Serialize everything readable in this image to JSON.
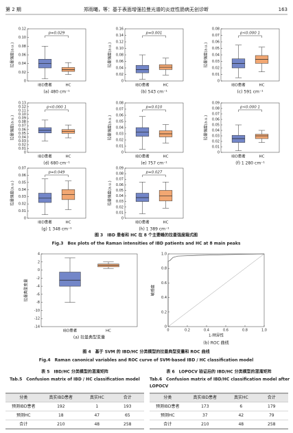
{
  "header": {
    "left": "第 2 期",
    "center": "郑雨曦，等：基于表面增强拉曼光谱的炎症性肠病无创诊断",
    "page": "163"
  },
  "figure3": {
    "caption_cn": "图 3　IBD 患者和 HC 在 8 个主要峰的拉曼强度箱式图",
    "caption_en": "Fig.3　Box plots of the Raman intensities of IBD patients and HC at 8 main peaks"
  },
  "figure4": {
    "caption_cn": "图 4　基于 SVM 的 IBD/HC 分类模型的拉曼典型变量和 ROC 曲线",
    "caption_en": "Fig.4　Raman canonical variables and ROC curve of SVM-based IBD / HC classification model"
  },
  "chart_data": [
    {
      "type": "box",
      "caption": "(a) 480 cm⁻¹",
      "ylabel": "拉曼强度(a.u.)",
      "annotation": "p=0.029",
      "categories": [
        "IBD患者",
        "HC"
      ],
      "colors": [
        "#7386c8",
        "#f2a772"
      ],
      "ylim": [
        0,
        0.12
      ],
      "yticks": [
        0,
        0.02,
        0.04,
        0.06,
        0.08,
        {
          "value": 0.1,
          "label": "0.10"
        },
        0.12
      ],
      "boxes": [
        {
          "whislo": 0.005,
          "q1": 0.03,
          "median": 0.04,
          "q3": 0.05,
          "whishi": 0.08
        },
        {
          "whislo": 0.015,
          "q1": 0.022,
          "median": 0.026,
          "q3": 0.031,
          "whishi": 0.042
        }
      ]
    },
    {
      "type": "box",
      "caption": "(b) 543 cm⁻¹",
      "ylabel": "拉曼强度(a.u.)",
      "annotation": "p=0.001",
      "categories": [
        "IBD患者",
        "HC"
      ],
      "colors": [
        "#7386c8",
        "#f2a772"
      ],
      "ylim": [
        0,
        0.16
      ],
      "yticks": [
        0,
        0.02,
        0.04,
        0.06,
        0.08,
        {
          "value": 0.1,
          "label": "0.10"
        },
        0.12,
        0.14,
        0.16
      ],
      "boxes": [
        {
          "whislo": 0.005,
          "q1": 0.025,
          "median": 0.035,
          "q3": 0.048,
          "whishi": 0.08
        },
        {
          "whislo": 0.018,
          "q1": 0.035,
          "median": 0.042,
          "q3": 0.05,
          "whishi": 0.07
        }
      ]
    },
    {
      "type": "box",
      "caption": "(c) 591 cm⁻¹",
      "ylabel": "拉曼强度(a.u.)",
      "annotation": "p<0.000 1",
      "categories": [
        "IBD患者",
        "HC"
      ],
      "colors": [
        "#7386c8",
        "#f2a772"
      ],
      "ylim": [
        0,
        0.08
      ],
      "yticks": [
        0,
        0.01,
        0.02,
        0.03,
        0.04,
        0.05,
        0.06,
        0.07,
        0.08
      ],
      "boxes": [
        {
          "whislo": 0.005,
          "q1": 0.02,
          "median": 0.027,
          "q3": 0.034,
          "whishi": 0.055
        },
        {
          "whislo": 0.014,
          "q1": 0.027,
          "median": 0.033,
          "q3": 0.039,
          "whishi": 0.052
        }
      ]
    },
    {
      "type": "box",
      "caption": "(d) 680 cm⁻¹",
      "ylabel": "拉曼强度(a.u.)",
      "annotation": "p<0.000 1",
      "categories": [
        "IBD患者",
        "HC"
      ],
      "colors": [
        "#7386c8",
        "#f2a772"
      ],
      "ylim": [
        0,
        0.13
      ],
      "yticks": [
        0,
        0.01,
        0.02,
        0.03,
        0.04,
        0.05,
        0.06,
        0.07,
        0.08,
        0.09,
        {
          "value": 0.1,
          "label": "0.10"
        },
        0.11,
        0.12,
        0.13
      ],
      "boxes": [
        {
          "whislo": 0.03,
          "q1": 0.051,
          "median": 0.058,
          "q3": 0.065,
          "whishi": 0.085
        },
        {
          "whislo": 0.038,
          "q1": 0.05,
          "median": 0.055,
          "q3": 0.06,
          "whishi": 0.072
        }
      ]
    },
    {
      "type": "box",
      "caption": "(e) 757 cm⁻¹",
      "ylabel": "拉曼强度(a.u.)",
      "annotation": "p=0.010",
      "categories": [
        "IBD患者",
        "HC"
      ],
      "colors": [
        "#7386c8",
        "#f2a772"
      ],
      "ylim": [
        0,
        0.08
      ],
      "yticks": [
        0,
        0.01,
        0.02,
        0.03,
        0.04,
        0.05,
        0.06,
        0.07,
        0.08
      ],
      "boxes": [
        {
          "whislo": 0.005,
          "q1": 0.026,
          "median": 0.033,
          "q3": 0.04,
          "whishi": 0.058
        },
        {
          "whislo": 0.015,
          "q1": 0.025,
          "median": 0.03,
          "q3": 0.035,
          "whishi": 0.045
        }
      ]
    },
    {
      "type": "box",
      "caption": "(f) 1 280 cm⁻¹",
      "ylabel": "拉曼强度(a.u.)",
      "annotation": "p<0.000 1",
      "categories": [
        "IBD患者",
        "HC"
      ],
      "colors": [
        "#7386c8",
        "#f2a772"
      ],
      "ylim": [
        0,
        0.09
      ],
      "yticks": [
        0,
        0.01,
        0.02,
        0.03,
        0.04,
        0.05,
        0.06,
        0.07,
        0.08,
        0.09
      ],
      "boxes": [
        {
          "whislo": 0.003,
          "q1": 0.018,
          "median": 0.025,
          "q3": 0.031,
          "whishi": 0.05
        },
        {
          "whislo": 0.018,
          "q1": 0.025,
          "median": 0.03,
          "q3": 0.033,
          "whishi": 0.04
        }
      ]
    },
    {
      "type": "box",
      "caption": "(g) 1 348 cm⁻¹",
      "ylabel": "拉曼强度(a.u.)",
      "annotation": "p=0.049",
      "categories": [
        "IBD患者",
        "HC"
      ],
      "colors": [
        "#7386c8",
        "#f2a772"
      ],
      "ylim": [
        0,
        0.07
      ],
      "yticks": [
        0,
        0.01,
        0.02,
        0.03,
        0.04,
        0.05,
        0.06,
        0.07
      ],
      "boxes": [
        {
          "whislo": 0.005,
          "q1": 0.022,
          "median": 0.028,
          "q3": 0.035,
          "whishi": 0.055
        },
        {
          "whislo": 0.012,
          "q1": 0.026,
          "median": 0.033,
          "q3": 0.04,
          "whishi": 0.052
        }
      ]
    },
    {
      "type": "box",
      "caption": "(h) 1 389 cm⁻¹",
      "ylabel": "拉曼强度(a.u.)",
      "annotation": "p=0.027",
      "categories": [
        "IBD患者",
        "HC"
      ],
      "colors": [
        "#7386c8",
        "#f2a772"
      ],
      "ylim": [
        0,
        0.09
      ],
      "yticks": [
        0,
        0.01,
        0.02,
        0.03,
        0.04,
        0.05,
        0.06,
        0.07,
        0.08,
        0.09
      ],
      "boxes": [
        {
          "whislo": 0.008,
          "q1": 0.03,
          "median": 0.037,
          "q3": 0.045,
          "whishi": 0.065
        },
        {
          "whislo": 0.018,
          "q1": 0.031,
          "median": 0.04,
          "q3": 0.05,
          "whishi": 0.065
        }
      ]
    },
    {
      "type": "box",
      "caption": "(a) 拉曼典型变量",
      "ylabel": "拉曼典型变量",
      "categories": [
        "IBD患者",
        "HC"
      ],
      "colors": [
        "#7386c8",
        "#f2a772"
      ],
      "ylim": [
        -14,
        4
      ],
      "yticks": [
        -14,
        -12,
        -10,
        -8,
        -6,
        -4,
        -2,
        0,
        2,
        4
      ],
      "boxes": [
        {
          "whislo": -8,
          "q1": -4,
          "median": -2.5,
          "q3": -0.5,
          "whishi": 3
        },
        {
          "whislo": 0.4,
          "q1": 0.8,
          "median": 1.2,
          "q3": 1.5,
          "whishi": 2
        }
      ]
    },
    {
      "type": "line",
      "caption": "(b) ROC 曲线",
      "xlabel": "1-特异性",
      "ylabel": "敏感度",
      "xlim": [
        0,
        1
      ],
      "ylim": [
        0,
        1
      ],
      "xticks": [
        0,
        0.2,
        0.4,
        0.6,
        0.8,
        {
          "value": 1,
          "label": "1.0"
        }
      ],
      "yticks": [
        0,
        0.2,
        0.4,
        0.6,
        0.8,
        {
          "value": 1,
          "label": "1.0"
        }
      ],
      "x": [
        0,
        0,
        0.02,
        0.05,
        0.1,
        0.3,
        0.6,
        1
      ],
      "series": [
        {
          "color": "#555555",
          "values": [
            0,
            0.9,
            0.91,
            0.95,
            0.97,
            0.98,
            0.99,
            1
          ]
        }
      ]
    }
  ],
  "tables": [
    {
      "title_cn": "表 5　IBD/HC 分类模型的混淆矩阵",
      "title_en": [
        "Tab.5　Confusion matrix of IBD / HC classification model"
      ],
      "header": [
        "分类",
        "真实IBD患者",
        "真实HC",
        "合计"
      ],
      "rows": [
        [
          "预测IBD患者",
          "192",
          "1",
          "193"
        ],
        [
          "预测HC",
          "18",
          "47",
          "65"
        ],
        [
          "合计",
          "210",
          "48",
          "258"
        ]
      ]
    },
    {
      "title_cn": "表 6　LOPOCV 验证后的 IBD/HC 分类模型的混淆矩阵",
      "title_en": [
        "Tab.6　Confusion matrix of IBD/HC classification model after",
        "LOPOCV"
      ],
      "header": [
        "分类",
        "真实IBD患者",
        "真实HC",
        "合计"
      ],
      "rows": [
        [
          "预测IBD患者",
          "173",
          "6",
          "179"
        ],
        [
          "预测HC",
          "37",
          "42",
          "79"
        ],
        [
          "合计",
          "210",
          "48",
          "258"
        ]
      ]
    }
  ]
}
